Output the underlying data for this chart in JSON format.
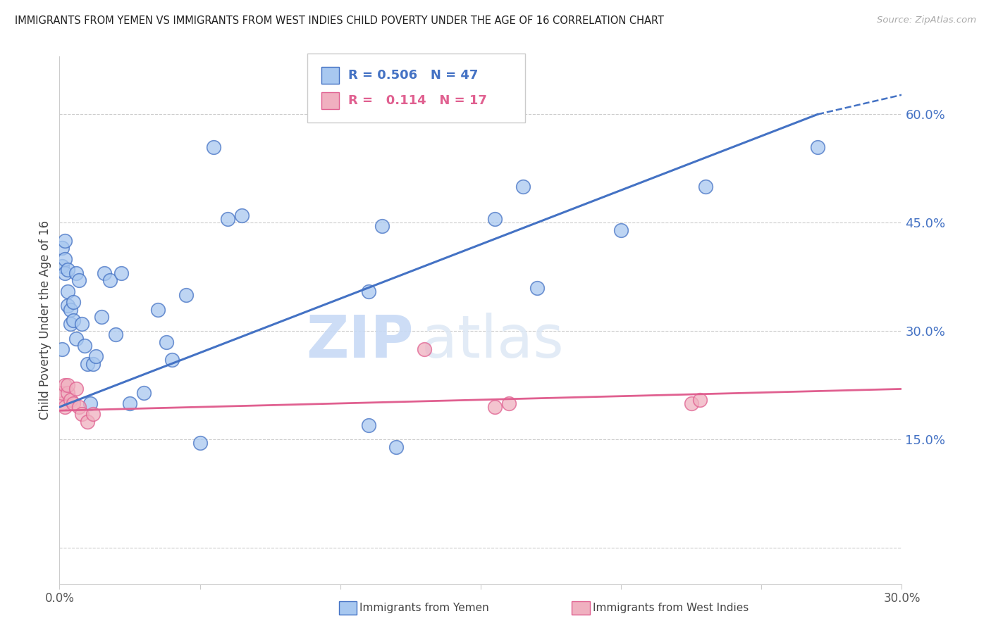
{
  "title": "IMMIGRANTS FROM YEMEN VS IMMIGRANTS FROM WEST INDIES CHILD POVERTY UNDER THE AGE OF 16 CORRELATION CHART",
  "source": "Source: ZipAtlas.com",
  "ylabel": "Child Poverty Under the Age of 16",
  "xlim": [
    0.0,
    0.3
  ],
  "ylim": [
    -0.05,
    0.68
  ],
  "yticks": [
    0.0,
    0.15,
    0.3,
    0.45,
    0.6
  ],
  "ytick_labels": [
    "",
    "15.0%",
    "30.0%",
    "45.0%",
    "60.0%"
  ],
  "xticks": [
    0.0,
    0.05,
    0.1,
    0.15,
    0.2,
    0.25,
    0.3
  ],
  "xtick_labels": [
    "0.0%",
    "",
    "",
    "",
    "",
    "",
    "30.0%"
  ],
  "legend1_r": "0.506",
  "legend1_n": "47",
  "legend2_r": "0.114",
  "legend2_n": "17",
  "legend_label1": "Immigrants from Yemen",
  "legend_label2": "Immigrants from West Indies",
  "blue_color": "#a8c8f0",
  "pink_color": "#f0b0c0",
  "line_blue": "#4472c4",
  "line_pink": "#e06090",
  "watermark_zip": "ZIP",
  "watermark_atlas": "atlas",
  "yemen_x": [
    0.001,
    0.001,
    0.001,
    0.002,
    0.002,
    0.002,
    0.003,
    0.003,
    0.003,
    0.004,
    0.004,
    0.005,
    0.005,
    0.006,
    0.006,
    0.007,
    0.008,
    0.009,
    0.01,
    0.011,
    0.012,
    0.013,
    0.015,
    0.016,
    0.018,
    0.02,
    0.022,
    0.025,
    0.03,
    0.035,
    0.038,
    0.04,
    0.045,
    0.05,
    0.055,
    0.06,
    0.065,
    0.11,
    0.115,
    0.12,
    0.155,
    0.165,
    0.17,
    0.2,
    0.23,
    0.27,
    0.11
  ],
  "yemen_y": [
    0.275,
    0.39,
    0.415,
    0.38,
    0.4,
    0.425,
    0.355,
    0.385,
    0.335,
    0.31,
    0.33,
    0.315,
    0.34,
    0.29,
    0.38,
    0.37,
    0.31,
    0.28,
    0.255,
    0.2,
    0.255,
    0.265,
    0.32,
    0.38,
    0.37,
    0.295,
    0.38,
    0.2,
    0.215,
    0.33,
    0.285,
    0.26,
    0.35,
    0.145,
    0.555,
    0.455,
    0.46,
    0.355,
    0.445,
    0.14,
    0.455,
    0.5,
    0.36,
    0.44,
    0.5,
    0.555,
    0.17
  ],
  "west_x": [
    0.001,
    0.001,
    0.002,
    0.002,
    0.003,
    0.003,
    0.004,
    0.005,
    0.006,
    0.007,
    0.008,
    0.01,
    0.012,
    0.155,
    0.16,
    0.225,
    0.228
  ],
  "west_y": [
    0.2,
    0.215,
    0.225,
    0.195,
    0.215,
    0.225,
    0.205,
    0.2,
    0.22,
    0.195,
    0.185,
    0.175,
    0.185,
    0.195,
    0.2,
    0.2,
    0.205
  ],
  "west_outlier_x": [
    0.13
  ],
  "west_outlier_y": [
    0.275
  ]
}
